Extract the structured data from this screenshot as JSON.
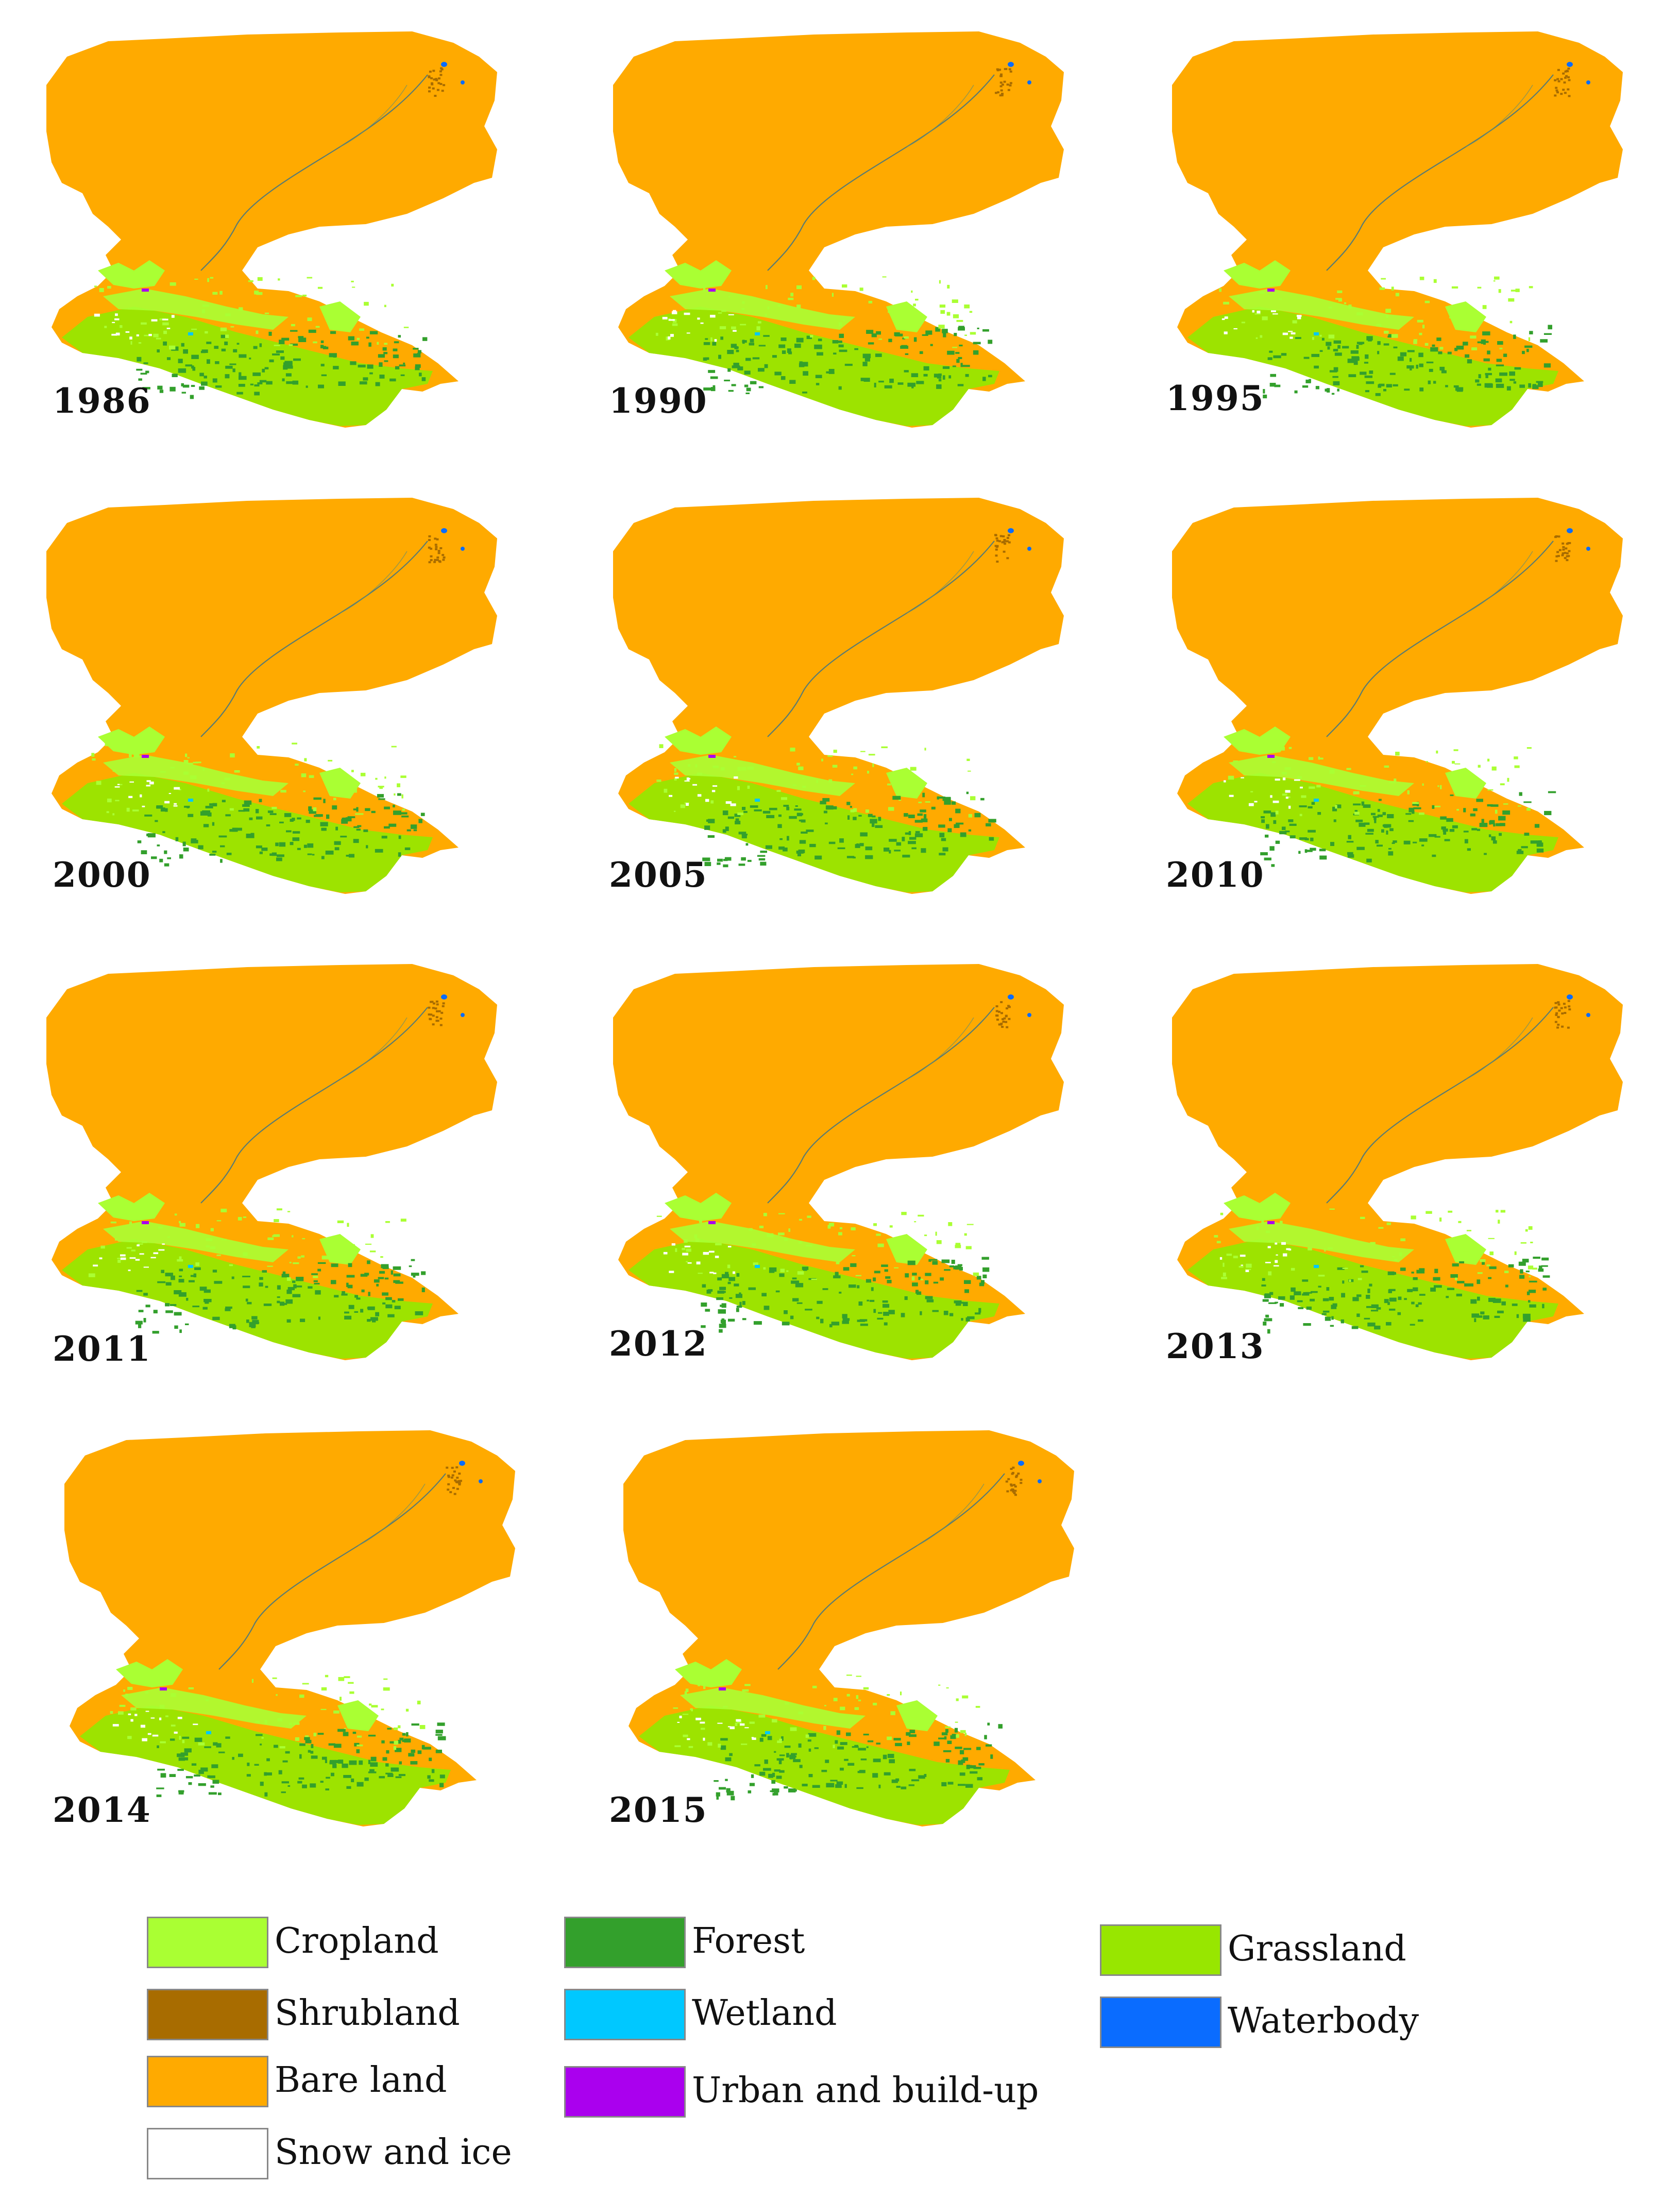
{
  "figure": {
    "panels": [
      {
        "year": "1986"
      },
      {
        "year": "1990"
      },
      {
        "year": "1995"
      },
      {
        "year": "2000"
      },
      {
        "year": "2005"
      },
      {
        "year": "2010"
      },
      {
        "year": "2011"
      },
      {
        "year": "2012"
      },
      {
        "year": "2013"
      },
      {
        "year": "2014"
      },
      {
        "year": "2015"
      }
    ]
  },
  "legend": {
    "items": [
      {
        "label": "Cropland",
        "color": "#aaff33"
      },
      {
        "label": "Shrubland",
        "color": "#a86c00"
      },
      {
        "label": "Bare land",
        "color": "#ffaa00"
      },
      {
        "label": "Snow and ice",
        "color": "#ffffff"
      },
      {
        "label": "Forest",
        "color": "#33a02c"
      },
      {
        "label": "Wetland",
        "color": "#00c8ff"
      },
      {
        "label": "Urban and build-up",
        "color": "#aa00ee"
      },
      {
        "label": "Grassland",
        "color": "#98e600"
      },
      {
        "label": "Waterbody",
        "color": "#0a6cff"
      }
    ]
  }
}
